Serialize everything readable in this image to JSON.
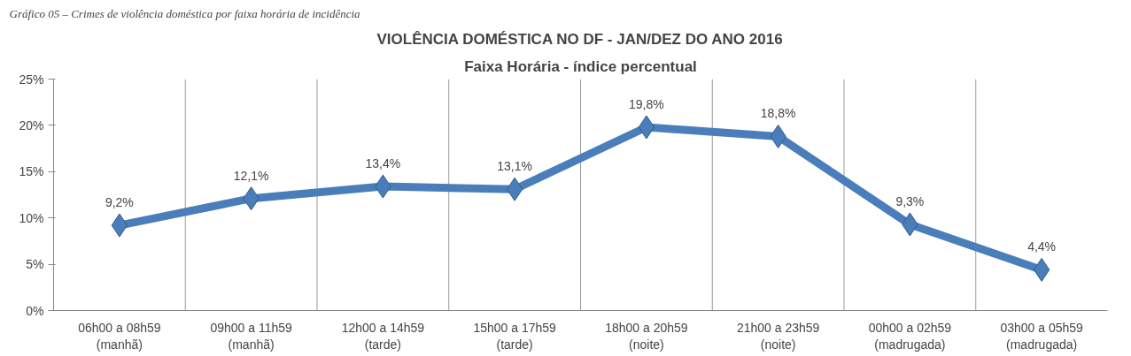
{
  "chart_data": {
    "type": "line",
    "title": "VIOLÊNCIA DOMÉSTICA NO DF - JAN/DEZ DO ANO 2016",
    "subtitle": "Faixa Horária - índice percentual",
    "annotations": [
      "Gráfico 05 – Crimes de violência doméstica por faixa horária de incidência"
    ],
    "categories": [
      "06h00 a 08h59\n(manhã)",
      "09h00 a 11h59\n(manhã)",
      "12h00 a 14h59\n(tarde)",
      "15h00 a 17h59\n(tarde)",
      "18h00 a 20h59\n(noite)",
      "21h00 a 23h59\n(noite)",
      "00h00 a 02h59\n(madrugada)",
      "03h00 a 05h59\n(madrugada)"
    ],
    "series": [
      {
        "color": "#4a7ebb",
        "values": [
          9.2,
          12.1,
          13.4,
          13.1,
          19.8,
          18.8,
          9.3,
          4.4
        ]
      }
    ],
    "value_labels": [
      "9,2%",
      "12,1%",
      "13,4%",
      "13,1%",
      "19,8%",
      "18,8%",
      "9,3%",
      "4,4%"
    ],
    "ylim": [
      0,
      25
    ],
    "yticks": [
      {
        "value": 0,
        "label": "0%"
      },
      {
        "value": 5,
        "label": "5%"
      },
      {
        "value": 10,
        "label": "10%"
      },
      {
        "value": 15,
        "label": "15%"
      },
      {
        "value": 20,
        "label": "20%"
      },
      {
        "value": 25,
        "label": "25%"
      }
    ],
    "grid": "x",
    "marker": "diamond",
    "line_style": "solid"
  }
}
